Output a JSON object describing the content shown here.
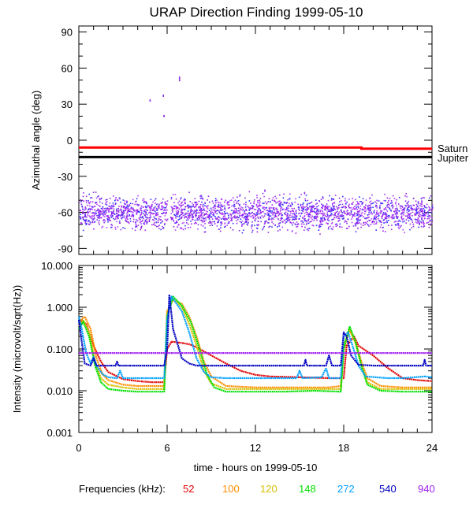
{
  "title": "URAP Direction Finding  1999-05-10",
  "chart_data": [
    {
      "type": "scatter",
      "panel": "top",
      "ylabel": "Azimuthal angle (deg)",
      "xlim": [
        0,
        24
      ],
      "ylim": [
        -95,
        95
      ],
      "yticks": [
        90,
        60,
        30,
        0,
        -30,
        -60,
        -90
      ],
      "ytick_labels": [
        "90",
        "60",
        "30",
        "0",
        "-30",
        "-60",
        "-90"
      ],
      "reference_lines": [
        {
          "name": "Saturn",
          "color": "#ff0000",
          "y": [
            [
              0,
              -6
            ],
            [
              19.2,
              -6
            ],
            [
              19.2,
              -7
            ],
            [
              24,
              -7
            ]
          ]
        },
        {
          "name": "Jupiter",
          "color": "#000000",
          "y": [
            [
              0,
              -14
            ],
            [
              24,
              -14
            ]
          ]
        }
      ],
      "scatter_band": {
        "center": -60,
        "spread": 8,
        "gap_hours": [
          6.0,
          6.2
        ],
        "colors": [
          "#a020f0",
          "#8a2be2",
          "#3030ff",
          "#b040ff"
        ]
      },
      "outliers": [
        {
          "x": 4.8,
          "y": 34
        },
        {
          "x": 5.7,
          "y": 38
        },
        {
          "x": 5.75,
          "y": 21
        },
        {
          "x": 6.8,
          "y": 53
        },
        {
          "x": 6.8,
          "y": 51
        },
        {
          "x": 12.6,
          "y": -41
        },
        {
          "x": 15.3,
          "y": -43
        }
      ]
    },
    {
      "type": "line",
      "panel": "bottom",
      "title": "",
      "ylabel": "Intensity (microvolt/sqrt(Hz))",
      "xlabel": "time - hours on 1999-05-10",
      "scale": "log",
      "xlim": [
        0,
        24
      ],
      "ylim": [
        0.001,
        10
      ],
      "xticks": [
        0,
        6,
        12,
        18,
        24
      ],
      "xtick_labels": [
        "0",
        "6",
        "12",
        "18",
        "24"
      ],
      "yticks": [
        10,
        1,
        0.1,
        0.01,
        0.001
      ],
      "ytick_labels": [
        "10.000",
        "1.000",
        "0.100",
        "0.010",
        "0.001"
      ],
      "legend_title": "Frequencies (kHz):",
      "series": [
        {
          "name": "52",
          "color": "#e00000",
          "points": [
            [
              0.0,
              0.5
            ],
            [
              0.5,
              0.4
            ],
            [
              1.0,
              0.12
            ],
            [
              1.5,
              0.05
            ],
            [
              2.0,
              0.028
            ],
            [
              3.0,
              0.019
            ],
            [
              4.0,
              0.017
            ],
            [
              5.0,
              0.016
            ],
            [
              5.8,
              0.016
            ],
            [
              6.0,
              0.1
            ],
            [
              6.3,
              0.15
            ],
            [
              7.0,
              0.14
            ],
            [
              7.5,
              0.13
            ],
            [
              8.0,
              0.11
            ],
            [
              9.0,
              0.07
            ],
            [
              10.0,
              0.045
            ],
            [
              11.0,
              0.03
            ],
            [
              12.0,
              0.024
            ],
            [
              13.0,
              0.022
            ],
            [
              15.0,
              0.021
            ],
            [
              17.0,
              0.02
            ],
            [
              18.0,
              0.02
            ],
            [
              18.2,
              0.12
            ],
            [
              18.7,
              0.2
            ],
            [
              19.0,
              0.12
            ],
            [
              20.0,
              0.07
            ],
            [
              21.0,
              0.035
            ],
            [
              22.0,
              0.02
            ],
            [
              23.0,
              0.018
            ],
            [
              24.0,
              0.017
            ]
          ]
        },
        {
          "name": "100",
          "color": "#ff8c00",
          "points": [
            [
              0.0,
              0.45
            ],
            [
              0.4,
              0.6
            ],
            [
              0.8,
              0.3
            ],
            [
              1.2,
              0.06
            ],
            [
              1.6,
              0.025
            ],
            [
              2.0,
              0.018
            ],
            [
              3.0,
              0.014
            ],
            [
              4.0,
              0.013
            ],
            [
              5.0,
              0.013
            ],
            [
              5.8,
              0.013
            ],
            [
              6.0,
              0.8
            ],
            [
              6.4,
              1.5
            ],
            [
              7.0,
              1.2
            ],
            [
              7.5,
              0.6
            ],
            [
              8.0,
              0.2
            ],
            [
              8.5,
              0.05
            ],
            [
              9.0,
              0.022
            ],
            [
              10.0,
              0.013
            ],
            [
              12.0,
              0.012
            ],
            [
              14.0,
              0.012
            ],
            [
              16.0,
              0.012
            ],
            [
              17.0,
              0.012
            ],
            [
              17.8,
              0.013
            ],
            [
              18.0,
              0.1
            ],
            [
              18.4,
              0.28
            ],
            [
              18.8,
              0.15
            ],
            [
              19.2,
              0.05
            ],
            [
              19.6,
              0.02
            ],
            [
              20.5,
              0.013
            ],
            [
              22.0,
              0.012
            ],
            [
              24.0,
              0.012
            ]
          ]
        },
        {
          "name": "120",
          "color": "#d4c000",
          "points": [
            [
              0.0,
              0.35
            ],
            [
              0.3,
              0.5
            ],
            [
              0.7,
              0.25
            ],
            [
              1.1,
              0.05
            ],
            [
              1.5,
              0.02
            ],
            [
              2.0,
              0.014
            ],
            [
              3.0,
              0.012
            ],
            [
              4.0,
              0.011
            ],
            [
              5.8,
              0.011
            ],
            [
              6.0,
              0.7
            ],
            [
              6.4,
              1.6
            ],
            [
              7.0,
              1.0
            ],
            [
              7.5,
              0.4
            ],
            [
              8.0,
              0.12
            ],
            [
              8.5,
              0.03
            ],
            [
              9.0,
              0.015
            ],
            [
              10.0,
              0.011
            ],
            [
              12.0,
              0.011
            ],
            [
              14.0,
              0.011
            ],
            [
              16.0,
              0.011
            ],
            [
              17.8,
              0.011
            ],
            [
              18.0,
              0.12
            ],
            [
              18.4,
              0.3
            ],
            [
              18.8,
              0.14
            ],
            [
              19.2,
              0.04
            ],
            [
              19.6,
              0.016
            ],
            [
              20.5,
              0.011
            ],
            [
              22.0,
              0.011
            ],
            [
              24.0,
              0.011
            ]
          ]
        },
        {
          "name": "148",
          "color": "#00e000",
          "points": [
            [
              0.0,
              0.3
            ],
            [
              0.3,
              0.45
            ],
            [
              0.7,
              0.2
            ],
            [
              1.1,
              0.04
            ],
            [
              1.5,
              0.016
            ],
            [
              2.0,
              0.011
            ],
            [
              3.0,
              0.01
            ],
            [
              4.0,
              0.0095
            ],
            [
              5.8,
              0.0095
            ],
            [
              6.0,
              0.6
            ],
            [
              6.4,
              1.8
            ],
            [
              7.0,
              1.1
            ],
            [
              7.6,
              0.45
            ],
            [
              8.2,
              0.1
            ],
            [
              8.7,
              0.025
            ],
            [
              9.2,
              0.012
            ],
            [
              10.0,
              0.0095
            ],
            [
              12.0,
              0.0095
            ],
            [
              14.0,
              0.0095
            ],
            [
              16.0,
              0.01
            ],
            [
              17.8,
              0.0095
            ],
            [
              18.0,
              0.1
            ],
            [
              18.4,
              0.35
            ],
            [
              18.8,
              0.15
            ],
            [
              19.2,
              0.04
            ],
            [
              19.6,
              0.014
            ],
            [
              20.5,
              0.01
            ],
            [
              22.0,
              0.0095
            ],
            [
              24.0,
              0.0095
            ]
          ]
        },
        {
          "name": "272",
          "color": "#00a0ff",
          "points": [
            [
              0.0,
              0.6
            ],
            [
              0.2,
              0.3
            ],
            [
              0.5,
              0.08
            ],
            [
              0.8,
              0.045
            ],
            [
              1.0,
              0.065
            ],
            [
              1.2,
              0.04
            ],
            [
              1.6,
              0.025
            ],
            [
              2.0,
              0.021
            ],
            [
              2.6,
              0.02
            ],
            [
              2.8,
              0.03
            ],
            [
              3.0,
              0.02
            ],
            [
              4.0,
              0.02
            ],
            [
              5.8,
              0.02
            ],
            [
              6.0,
              0.5
            ],
            [
              6.3,
              1.8
            ],
            [
              7.0,
              0.8
            ],
            [
              7.5,
              0.25
            ],
            [
              8.0,
              0.06
            ],
            [
              8.5,
              0.028
            ],
            [
              9.0,
              0.021
            ],
            [
              10.0,
              0.02
            ],
            [
              12.0,
              0.02
            ],
            [
              14.0,
              0.02
            ],
            [
              14.8,
              0.02
            ],
            [
              15.0,
              0.03
            ],
            [
              15.2,
              0.02
            ],
            [
              16.5,
              0.021
            ],
            [
              16.8,
              0.035
            ],
            [
              17.0,
              0.02
            ],
            [
              17.8,
              0.02
            ],
            [
              18.0,
              0.2
            ],
            [
              18.3,
              0.25
            ],
            [
              18.6,
              0.12
            ],
            [
              19.0,
              0.04
            ],
            [
              19.5,
              0.022
            ],
            [
              21.0,
              0.02
            ],
            [
              22.0,
              0.02
            ],
            [
              23.5,
              0.022
            ],
            [
              24.0,
              0.021
            ]
          ]
        },
        {
          "name": "540",
          "color": "#0000c0",
          "points": [
            [
              0.0,
              0.5
            ],
            [
              0.2,
              0.15
            ],
            [
              0.4,
              0.045
            ],
            [
              0.8,
              0.04
            ],
            [
              1.0,
              0.06
            ],
            [
              1.2,
              0.04
            ],
            [
              2.0,
              0.04
            ],
            [
              2.5,
              0.04
            ],
            [
              2.6,
              0.05
            ],
            [
              2.7,
              0.04
            ],
            [
              4.0,
              0.04
            ],
            [
              5.8,
              0.04
            ],
            [
              6.0,
              0.1
            ],
            [
              6.15,
              2.0
            ],
            [
              6.4,
              0.3
            ],
            [
              7.0,
              0.06
            ],
            [
              7.5,
              0.045
            ],
            [
              8.0,
              0.04
            ],
            [
              10.0,
              0.04
            ],
            [
              12.0,
              0.04
            ],
            [
              14.0,
              0.04
            ],
            [
              15.3,
              0.04
            ],
            [
              15.4,
              0.055
            ],
            [
              15.5,
              0.04
            ],
            [
              16.8,
              0.04
            ],
            [
              17.0,
              0.07
            ],
            [
              17.2,
              0.04
            ],
            [
              17.8,
              0.04
            ],
            [
              18.0,
              0.25
            ],
            [
              18.2,
              0.2
            ],
            [
              18.5,
              0.07
            ],
            [
              19.0,
              0.042
            ],
            [
              20.0,
              0.04
            ],
            [
              22.0,
              0.04
            ],
            [
              23.4,
              0.04
            ],
            [
              23.5,
              0.055
            ],
            [
              23.6,
              0.04
            ],
            [
              24.0,
              0.04
            ]
          ]
        },
        {
          "name": "940",
          "color": "#a020f0",
          "points": [
            [
              0.0,
              0.08
            ],
            [
              0.5,
              0.08
            ],
            [
              1.0,
              0.08
            ],
            [
              2.0,
              0.08
            ],
            [
              3.0,
              0.08
            ],
            [
              4.0,
              0.08
            ],
            [
              5.0,
              0.08
            ],
            [
              6.0,
              0.08
            ],
            [
              6.2,
              0.08
            ],
            [
              7.0,
              0.08
            ],
            [
              8.0,
              0.08
            ],
            [
              10.0,
              0.08
            ],
            [
              12.0,
              0.08
            ],
            [
              14.0,
              0.08
            ],
            [
              16.0,
              0.08
            ],
            [
              18.0,
              0.08
            ],
            [
              20.0,
              0.08
            ],
            [
              22.0,
              0.08
            ],
            [
              24.0,
              0.08
            ]
          ]
        }
      ]
    }
  ]
}
